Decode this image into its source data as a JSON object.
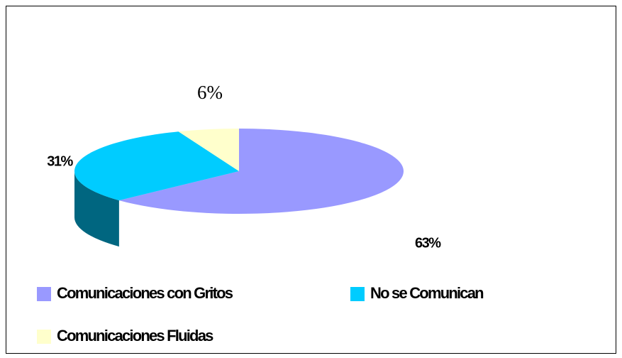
{
  "chart_data": {
    "type": "pie3d",
    "categories": [
      "Comunicaciones con Gritos",
      "No se Comunican",
      "Comunicaciones Fluidas"
    ],
    "values": [
      63,
      31,
      6
    ],
    "value_labels": [
      "63%",
      "31%",
      "6%"
    ],
    "colors": [
      "#9999ff",
      "#00ccff",
      "#ffffcc"
    ],
    "side_colors": [
      "#4d4d80",
      "#006680",
      "#808066"
    ],
    "legend": "bottom"
  }
}
